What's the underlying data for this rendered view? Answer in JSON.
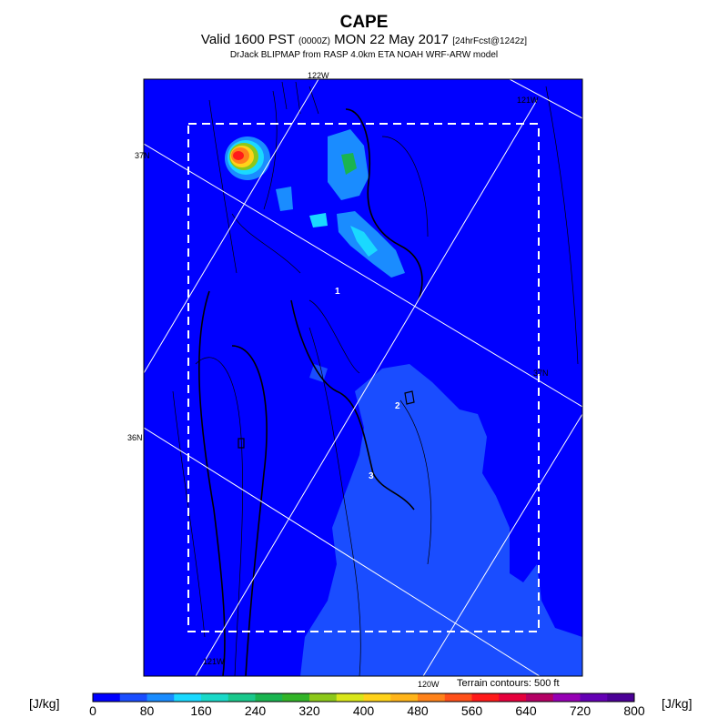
{
  "header": {
    "title": "CAPE",
    "valid": "Valid 1600 PST",
    "valid_z": "(0000Z)",
    "date": "MON 22 May 2017",
    "fcst": "[24hrFcst@1242z]",
    "source": "DrJack BLIPMAP from RASP 4.0km ETA NOAH WRF-ARW model"
  },
  "map": {
    "lon_labels": [
      "122W",
      "121W",
      "121W",
      "120W"
    ],
    "lat_labels": [
      "37N",
      "36N",
      "37N"
    ],
    "point_labels": [
      "1",
      "2",
      "3"
    ],
    "terrain_note": "Terrain contours: 500 ft"
  },
  "colorbar": {
    "unit": "[J/kg]",
    "ticks": [
      "0",
      "80",
      "160",
      "240",
      "320",
      "400",
      "480",
      "560",
      "640",
      "720",
      "800"
    ],
    "colors": [
      "#0000ff",
      "#1a4dff",
      "#1a8cff",
      "#1ad9ff",
      "#1ad9c8",
      "#1ac88c",
      "#1ab450",
      "#32b428",
      "#8cc81a",
      "#d9e61a",
      "#ffd21a",
      "#ffb41a",
      "#ff821a",
      "#ff501a",
      "#ff1a1a",
      "#e6003c",
      "#b40064",
      "#9600b4",
      "#6400b4",
      "#4b0096"
    ]
  },
  "legend_colors": {
    "background": "#0000ff",
    "low": "#1a4dff",
    "mid": "#1ad9ff",
    "high": "#ff1a1a"
  }
}
